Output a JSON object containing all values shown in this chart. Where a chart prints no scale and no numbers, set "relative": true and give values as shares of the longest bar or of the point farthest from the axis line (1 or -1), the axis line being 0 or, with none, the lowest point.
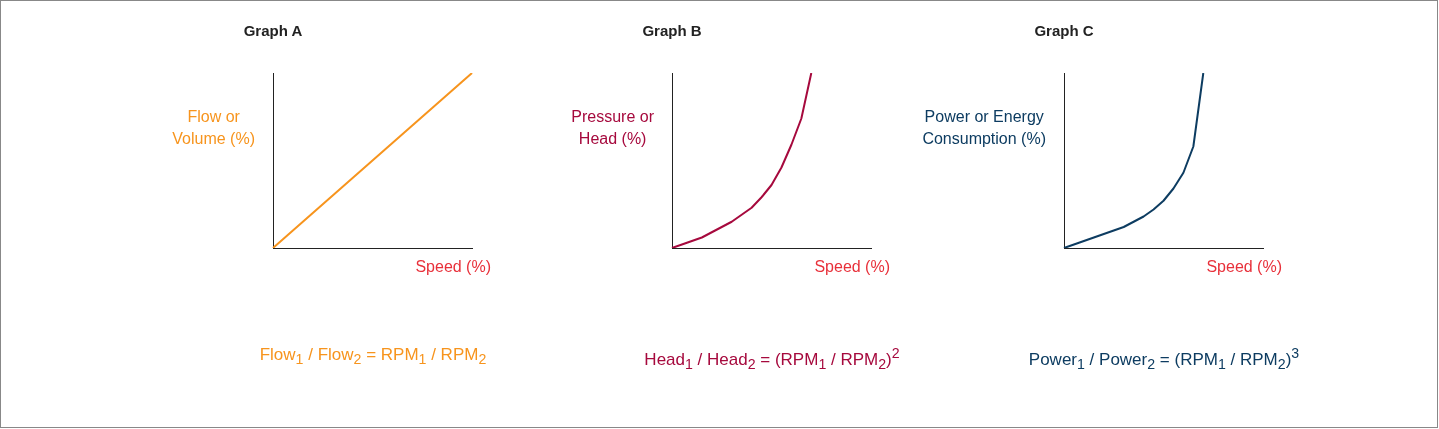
{
  "chart_data": [
    {
      "type": "line",
      "title": "Graph A",
      "xlabel": "Speed (%)",
      "ylabel": "Flow or\nVolume (%)",
      "categories": [
        null,
        null,
        null,
        null,
        null,
        null,
        null,
        null,
        null,
        null,
        null,
        null,
        null,
        null,
        null,
        null,
        null,
        null,
        null,
        null,
        null
      ],
      "series": [
        {
          "color": "#f7941d",
          "values": [
            0,
            0.05,
            0.1,
            0.15,
            0.2,
            0.25,
            0.3,
            0.35,
            0.4,
            0.45,
            0.5,
            0.55,
            0.6,
            0.65,
            0.7,
            0.75,
            0.8,
            0.85,
            0.9,
            0.95,
            1
          ]
        }
      ],
      "relative": true,
      "grid": false,
      "legend": false,
      "tick_labels": false,
      "marker": "none",
      "annotations": [
        "Flow$_{1}$ / Flow$_{2}$ = RPM$_{1}$ / RPM$_{2}$"
      ]
    },
    {
      "type": "line",
      "title": "Graph B",
      "xlabel": "Speed (%)",
      "ylabel": "Pressure or\nHead (%)",
      "categories": [
        null,
        null,
        null,
        null,
        null,
        null,
        null,
        null,
        null,
        null,
        null,
        null,
        null,
        null,
        null,
        null,
        null,
        null,
        null,
        null,
        null
      ],
      "series": [
        {
          "color": "#a6093d",
          "values": [
            0,
            0.02,
            0.04,
            0.06,
            0.09,
            0.12,
            0.15,
            0.19,
            0.23,
            0.29,
            0.36,
            0.46,
            0.59,
            0.74,
            1,
            null,
            null,
            null,
            null,
            null,
            null
          ]
        }
      ],
      "relative": true,
      "grid": false,
      "legend": false,
      "tick_labels": false,
      "marker": "none",
      "annotations": [
        "Head$_{1}$ / Head$_{2}$ = (RPM$_{1}$ / RPM$_{2}$)$^{2}$"
      ]
    },
    {
      "type": "line",
      "title": "Graph C",
      "xlabel": "Speed (%)",
      "ylabel": "Power or Energy\nConsumption (%)",
      "categories": [
        null,
        null,
        null,
        null,
        null,
        null,
        null,
        null,
        null,
        null,
        null,
        null,
        null,
        null,
        null,
        null,
        null,
        null,
        null,
        null,
        null
      ],
      "series": [
        {
          "color": "#0d3c61",
          "values": [
            0,
            0.02,
            0.04,
            0.06,
            0.08,
            0.1,
            0.12,
            0.15,
            0.18,
            0.22,
            0.27,
            0.34,
            0.43,
            0.58,
            1,
            null,
            null,
            null,
            null,
            null,
            null
          ]
        }
      ],
      "relative": true,
      "grid": false,
      "legend": false,
      "tick_labels": false,
      "marker": "none",
      "annotations": [
        "Power$_{1}$ / Power$_{2}$ = (RPM$_{1}$ / RPM$_{2}$)$^{3}$"
      ]
    }
  ]
}
